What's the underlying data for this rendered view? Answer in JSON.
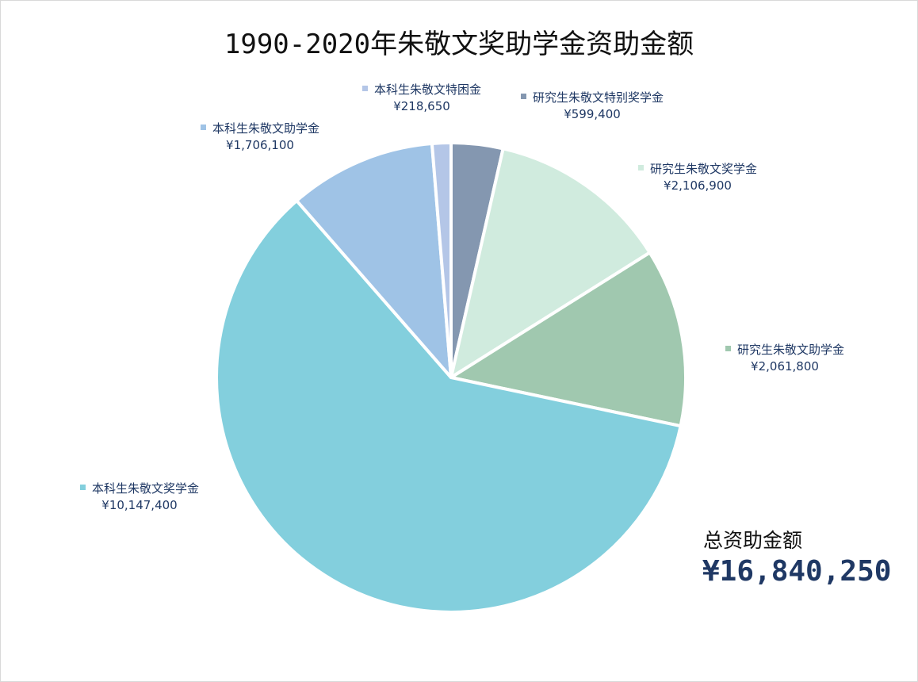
{
  "chart_data": {
    "type": "pie",
    "title": "1990-2020年朱敬文奖助学金资助金额",
    "currency": "¥",
    "slices": [
      {
        "name": "研究生朱敬文特别奖学金",
        "value_label": "¥599,400",
        "value": 599400,
        "color": "#8497b0"
      },
      {
        "name": "研究生朱敬文奖学金",
        "value_label": "¥2,106,900",
        "value": 2106900,
        "color": "#d0ebde"
      },
      {
        "name": "研究生朱敬文助学金",
        "value_label": "¥2,061,800",
        "value": 2061800,
        "color": "#a0c8af"
      },
      {
        "name": "本科生朱敬文奖学金",
        "value_label": "¥10,147,400",
        "value": 10147400,
        "color": "#83cfdd"
      },
      {
        "name": "本科生朱敬文助学金",
        "value_label": "¥1,706,100",
        "value": 1706100,
        "color": "#9fc3e6"
      },
      {
        "name": "本科生朱敬文特困金",
        "value_label": "¥218,650",
        "value": 218650,
        "color": "#b4c6e7"
      }
    ],
    "start_angle_deg": 0,
    "direction": "clockwise",
    "legend": "data labels around pie"
  },
  "summary": {
    "label": "总资助金额",
    "value": "¥16,840,250"
  }
}
